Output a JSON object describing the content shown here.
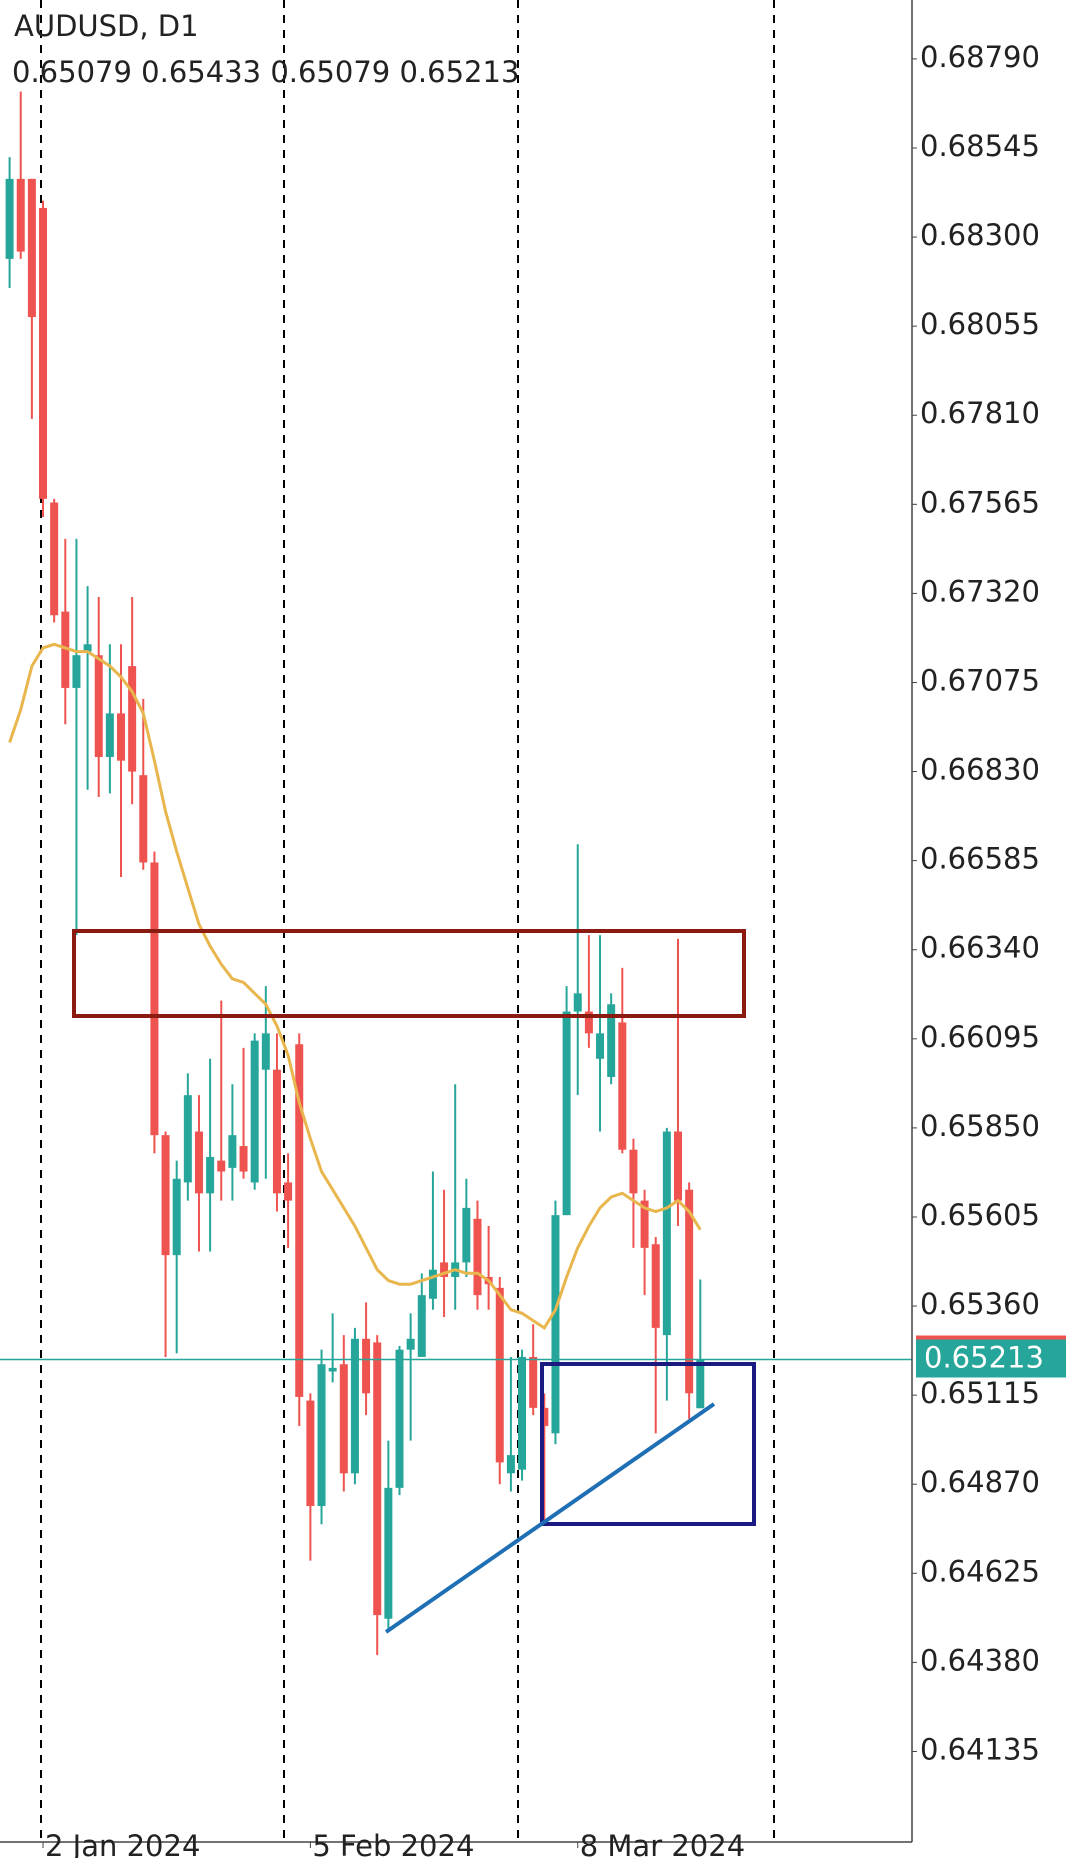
{
  "chart_data": {
    "type": "candlestick",
    "title": "AUDUSD, D1",
    "categories": [
      null,
      null,
      null,
      "2 Jan 2024",
      null,
      null,
      null,
      null,
      null,
      null,
      null,
      null,
      null,
      null,
      null,
      null,
      null,
      null,
      null,
      null,
      null,
      null,
      null,
      null,
      null,
      null,
      null,
      "5 Feb 2024",
      null,
      null,
      null,
      null,
      null,
      null,
      null,
      null,
      null,
      null,
      null,
      null,
      null,
      null,
      null,
      null,
      null,
      null,
      null,
      null,
      null,
      null,
      null,
      "8 Mar 2024",
      null,
      null,
      null,
      null,
      null,
      null,
      null,
      null,
      null,
      null,
      null
    ],
    "open": [
      0.6824,
      0.6846,
      0.6846,
      0.6838,
      0.6757,
      0.6727,
      0.6706,
      0.6716,
      0.6715,
      0.6687,
      0.6699,
      0.6712,
      0.6682,
      0.6658,
      0.6583,
      0.655,
      0.657,
      0.6584,
      0.6567,
      0.6576,
      0.6574,
      0.658,
      0.657,
      0.6601,
      0.6601,
      0.657,
      0.6608,
      0.651,
      0.6481,
      0.6518,
      0.652,
      0.649,
      0.6527,
      0.6526,
      0.645,
      0.6486,
      0.6524,
      0.6522,
      0.6538,
      0.6548,
      0.6544,
      0.6548,
      0.656,
      0.6544,
      0.6541,
      0.649,
      0.6491,
      0.6522,
      0.6508,
      0.6501,
      0.6561,
      0.6617,
      0.6617,
      0.6604,
      0.6599,
      0.6614,
      0.6579,
      0.6565,
      0.6553,
      0.6528,
      0.6584,
      0.6568,
      0.65079
    ],
    "high": [
      0.6852,
      0.687,
      0.6846,
      0.684,
      0.6758,
      0.6747,
      0.6747,
      0.6734,
      0.6731,
      0.6718,
      0.6718,
      0.6731,
      0.6703,
      0.6661,
      0.6584,
      0.6576,
      0.66,
      0.6594,
      0.6604,
      0.662,
      0.6597,
      0.6607,
      0.6611,
      0.6624,
      0.6611,
      0.6578,
      0.6611,
      0.6512,
      0.6524,
      0.6534,
      0.6528,
      0.653,
      0.6537,
      0.6528,
      0.6499,
      0.6525,
      0.6534,
      0.6545,
      0.6573,
      0.6568,
      0.6597,
      0.6571,
      0.6565,
      0.6558,
      0.6544,
      0.6522,
      0.6524,
      0.6531,
      0.6512,
      0.6565,
      0.6624,
      0.6663,
      0.6638,
      0.6638,
      0.6622,
      0.6629,
      0.6582,
      0.6568,
      0.6555,
      0.6585,
      0.6637,
      0.657,
      0.65433
    ],
    "low": [
      0.6816,
      0.6824,
      0.678,
      0.6753,
      0.6724,
      0.6696,
      0.6638,
      0.6678,
      0.6676,
      0.6677,
      0.6654,
      0.6674,
      0.6656,
      0.6578,
      0.6522,
      0.6523,
      0.6565,
      0.6551,
      0.6551,
      0.6565,
      0.6565,
      0.6571,
      0.6568,
      0.6571,
      0.6562,
      0.6552,
      0.6503,
      0.6466,
      0.6476,
      0.6515,
      0.6485,
      0.6487,
      0.6506,
      0.644,
      0.6447,
      0.6484,
      0.6499,
      0.6522,
      0.6535,
      0.6533,
      0.6535,
      0.6544,
      0.6535,
      0.6535,
      0.6487,
      0.6485,
      0.6488,
      0.6506,
      0.6476,
      0.6498,
      0.6561,
      0.6594,
      0.6607,
      0.6584,
      0.6597,
      0.6578,
      0.6552,
      0.6539,
      0.6501,
      0.651,
      0.6558,
      0.6505,
      0.65079
    ],
    "close": [
      0.6846,
      0.6826,
      0.6808,
      0.6758,
      0.6726,
      0.6706,
      0.6715,
      0.6718,
      0.6687,
      0.6699,
      0.6686,
      0.6683,
      0.6658,
      0.6583,
      0.655,
      0.6571,
      0.6594,
      0.6567,
      0.6577,
      0.6573,
      0.6583,
      0.6573,
      0.6609,
      0.6611,
      0.6567,
      0.6565,
      0.6511,
      0.6481,
      0.652,
      0.6519,
      0.649,
      0.6527,
      0.6512,
      0.6451,
      0.6486,
      0.6524,
      0.6527,
      0.6539,
      0.6546,
      0.6544,
      0.6548,
      0.6563,
      0.6539,
      0.6542,
      0.6493,
      0.6495,
      0.6522,
      0.6508,
      0.6503,
      0.6561,
      0.6617,
      0.6622,
      0.6611,
      0.6611,
      0.6619,
      0.6579,
      0.6567,
      0.6552,
      0.653,
      0.6584,
      0.6565,
      0.6512,
      0.65213
    ],
    "ma": [
      0.6691,
      0.67,
      0.6712,
      0.6717,
      0.6718,
      0.6717,
      0.6716,
      0.6716,
      0.6714,
      0.6712,
      0.6709,
      0.6705,
      0.6699,
      0.6686,
      0.6672,
      0.6661,
      0.6651,
      0.6641,
      0.6635,
      0.663,
      0.6626,
      0.6625,
      0.6622,
      0.6619,
      0.6613,
      0.6605,
      0.6592,
      0.6582,
      0.6573,
      0.6568,
      0.6563,
      0.6558,
      0.6552,
      0.6546,
      0.6543,
      0.6542,
      0.6542,
      0.6543,
      0.6544,
      0.6545,
      0.6546,
      0.6545,
      0.6545,
      0.6543,
      0.6539,
      0.6535,
      0.6534,
      0.6532,
      0.653,
      0.6535,
      0.6544,
      0.6552,
      0.6558,
      0.6563,
      0.6566,
      0.6567,
      0.6565,
      0.6563,
      0.6562,
      0.6563,
      0.6565,
      0.6562,
      0.6557
    ],
    "up_color": "#26a69a",
    "down_color": "#ef5350",
    "ma_color": "#e8b64c",
    "ylim": [
      0.63886,
      0.68952
    ],
    "yticks": [
      {
        "value": 0.6879,
        "label": "0.68790"
      },
      0.68545,
      {
        "value": 0.683,
        "label": "0.68300"
      },
      0.68055,
      {
        "value": 0.6781,
        "label": "0.67810"
      },
      0.67565,
      {
        "value": 0.6732,
        "label": "0.67320"
      },
      0.67075,
      {
        "value": 0.6683,
        "label": "0.66830"
      },
      0.66585,
      {
        "value": 0.6634,
        "label": "0.66340"
      },
      0.66095,
      {
        "value": 0.6585,
        "label": "0.65850"
      },
      0.65605,
      {
        "value": 0.6536,
        "label": "0.65360"
      },
      0.65115,
      {
        "value": 0.6487,
        "label": "0.64870"
      },
      0.64625,
      {
        "value": 0.6438,
        "label": "0.64380"
      },
      0.64135
    ],
    "grid": false
  }
}
